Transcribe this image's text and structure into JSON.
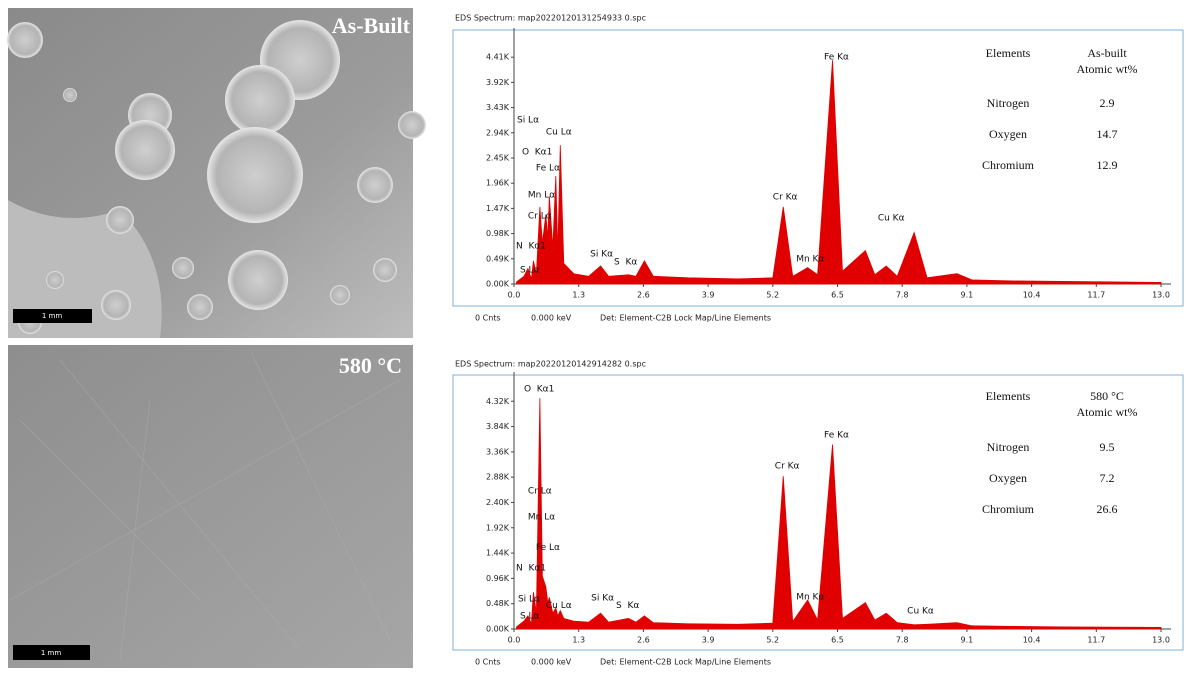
{
  "images": [
    {
      "label": "As-Built",
      "scale_bar": "1 mm"
    },
    {
      "label": "580 °C",
      "scale_bar": "1 mm"
    }
  ],
  "chart_data": [
    {
      "type": "area",
      "title": "EDS Spectrum: map20220120131254933 0.spc",
      "color": "#e00000",
      "x": [
        0.05,
        0.2,
        0.28,
        0.35,
        0.39,
        0.45,
        0.52,
        0.57,
        0.64,
        0.68,
        0.71,
        0.78,
        0.84,
        0.88,
        0.93,
        1.0,
        1.2,
        1.5,
        1.74,
        1.9,
        2.3,
        2.45,
        2.62,
        2.8,
        3.5,
        4.5,
        5.2,
        5.41,
        5.6,
        5.9,
        6.1,
        6.4,
        6.6,
        7.06,
        7.25,
        7.48,
        7.7,
        8.04,
        8.3,
        8.9,
        9.2,
        10,
        11,
        12,
        13
      ],
      "values": [
        40,
        150,
        300,
        100,
        450,
        200,
        1500,
        800,
        1350,
        900,
        1700,
        700,
        2100,
        600,
        2700,
        400,
        200,
        150,
        350,
        150,
        180,
        150,
        450,
        150,
        120,
        100,
        120,
        1500,
        150,
        320,
        180,
        4350,
        250,
        650,
        180,
        350,
        150,
        1000,
        120,
        200,
        80,
        60,
        50,
        40,
        30
      ],
      "xlim": [
        0,
        13
      ],
      "ylim": [
        0,
        4880
      ],
      "xticks": [
        {
          "value": 0,
          "label": "0.0"
        },
        1.3,
        2.6,
        3.9,
        5.2,
        6.5,
        7.8,
        9.1,
        10.4,
        11.7,
        {
          "value": 13,
          "label": "13.0"
        }
      ],
      "yticks": [
        {
          "value": 0,
          "label": "0.00K"
        },
        {
          "value": 490,
          "label": "0.49K"
        },
        {
          "value": 980,
          "label": "0.98K"
        },
        {
          "value": 1470,
          "label": "1.47K"
        },
        {
          "value": 1960,
          "label": "1.96K"
        },
        {
          "value": 2450,
          "label": "2.45K"
        },
        {
          "value": 2940,
          "label": "2.94K"
        },
        {
          "value": 3430,
          "label": "3.43K"
        },
        {
          "value": 3920,
          "label": "3.92K"
        },
        {
          "value": 4410,
          "label": "4.41K"
        }
      ],
      "annotations": [
        {
          "text": "Si Lα",
          "x": 0.06,
          "y": 3190
        },
        {
          "text": "Cu Lα",
          "x": 0.64,
          "y": 2960
        },
        {
          "text": "O  Kα1",
          "x": 0.16,
          "y": 2570
        },
        {
          "text": "Fe Lα",
          "x": 0.44,
          "y": 2260
        },
        {
          "text": "Mn Lα",
          "x": 0.28,
          "y": 1730
        },
        {
          "text": "Cr Lα",
          "x": 0.28,
          "y": 1320
        },
        {
          "text": "N  Kα1",
          "x": 0.04,
          "y": 740
        },
        {
          "text": "S Lα",
          "x": 0.12,
          "y": 270
        },
        {
          "text": "Si Kα",
          "x": 1.53,
          "y": 580
        },
        {
          "text": "S  Kα",
          "x": 2.01,
          "y": 430
        },
        {
          "text": "Cr Kα",
          "x": 5.2,
          "y": 1690
        },
        {
          "text": "Mn Kα",
          "x": 5.67,
          "y": 490
        },
        {
          "text": "Fe Kα",
          "x": 6.23,
          "y": 4410
        },
        {
          "text": "Cu Kα",
          "x": 7.31,
          "y": 1280
        }
      ],
      "table": {
        "header": [
          "Elements",
          "As-built",
          "Atomic wt%"
        ],
        "rows": [
          [
            "Nitrogen",
            2.9
          ],
          [
            "Oxygen",
            14.7
          ],
          [
            "Chromium",
            12.9
          ]
        ]
      },
      "footer": [
        "0 Cnts",
        "0.000 keV",
        "Det: Element-C2B Lock Map/Line Elements"
      ]
    },
    {
      "type": "area",
      "title": "EDS Spectrum: map20220120142914282 0.spc",
      "color": "#e00000",
      "x": [
        0.05,
        0.2,
        0.28,
        0.35,
        0.39,
        0.45,
        0.52,
        0.57,
        0.64,
        0.68,
        0.71,
        0.78,
        0.84,
        0.88,
        0.93,
        1.0,
        1.2,
        1.5,
        1.74,
        1.9,
        2.3,
        2.45,
        2.62,
        2.8,
        3.5,
        4.5,
        5.2,
        5.41,
        5.6,
        5.9,
        6.1,
        6.4,
        6.6,
        7.06,
        7.25,
        7.48,
        7.7,
        8.04,
        8.3,
        8.9,
        9.2,
        10,
        11,
        12,
        13
      ],
      "values": [
        40,
        150,
        250,
        100,
        700,
        300,
        4380,
        1000,
        800,
        500,
        600,
        300,
        400,
        250,
        350,
        200,
        150,
        130,
        300,
        130,
        200,
        130,
        250,
        120,
        100,
        90,
        110,
        2900,
        140,
        550,
        170,
        3500,
        200,
        500,
        170,
        300,
        120,
        80,
        90,
        120,
        60,
        50,
        40,
        35,
        30
      ],
      "xlim": [
        0,
        13
      ],
      "ylim": [
        0,
        4780
      ],
      "xticks": [
        {
          "value": 0,
          "label": "0.0"
        },
        1.3,
        2.6,
        3.9,
        5.2,
        6.5,
        7.8,
        9.1,
        10.4,
        11.7,
        {
          "value": 13,
          "label": "13.0"
        }
      ],
      "yticks": [
        {
          "value": 0,
          "label": "0.00K"
        },
        {
          "value": 480,
          "label": "0.48K"
        },
        {
          "value": 960,
          "label": "0.96K"
        },
        {
          "value": 1440,
          "label": "1.44K"
        },
        {
          "value": 1920,
          "label": "1.92K"
        },
        {
          "value": 2400,
          "label": "2.40K"
        },
        {
          "value": 2880,
          "label": "2.88K"
        },
        {
          "value": 3360,
          "label": "3.36K"
        },
        {
          "value": 3840,
          "label": "3.84K"
        },
        {
          "value": 4320,
          "label": "4.32K"
        }
      ],
      "annotations": [
        {
          "text": "O  Kα1",
          "x": 0.2,
          "y": 4550
        },
        {
          "text": "Fe Kα",
          "x": 6.23,
          "y": 3680
        },
        {
          "text": "Cr Kα",
          "x": 5.24,
          "y": 3090
        },
        {
          "text": "Cr Lα",
          "x": 0.28,
          "y": 2620
        },
        {
          "text": "Mn Lα",
          "x": 0.28,
          "y": 2120
        },
        {
          "text": "Fe Lα",
          "x": 0.44,
          "y": 1550
        },
        {
          "text": "N  Kα1",
          "x": 0.04,
          "y": 1160
        },
        {
          "text": "Si Lα",
          "x": 0.08,
          "y": 570
        },
        {
          "text": "Cu Lα",
          "x": 0.64,
          "y": 450
        },
        {
          "text": "S Lα",
          "x": 0.12,
          "y": 250
        },
        {
          "text": "Si Kα",
          "x": 1.55,
          "y": 590
        },
        {
          "text": "S  Kα",
          "x": 2.05,
          "y": 450
        },
        {
          "text": "Mn Kα",
          "x": 5.67,
          "y": 610
        },
        {
          "text": "Cu Kα",
          "x": 7.9,
          "y": 340
        }
      ],
      "table": {
        "header": [
          "Elements",
          "580 °C",
          "Atomic wt%"
        ],
        "rows": [
          [
            "Nitrogen",
            9.5
          ],
          [
            "Oxygen",
            7.2
          ],
          [
            "Chromium",
            26.6
          ]
        ]
      },
      "footer": [
        "0 Cnts",
        "0.000 keV",
        "Det: Element-C2B Lock Map/Line Elements"
      ]
    }
  ]
}
